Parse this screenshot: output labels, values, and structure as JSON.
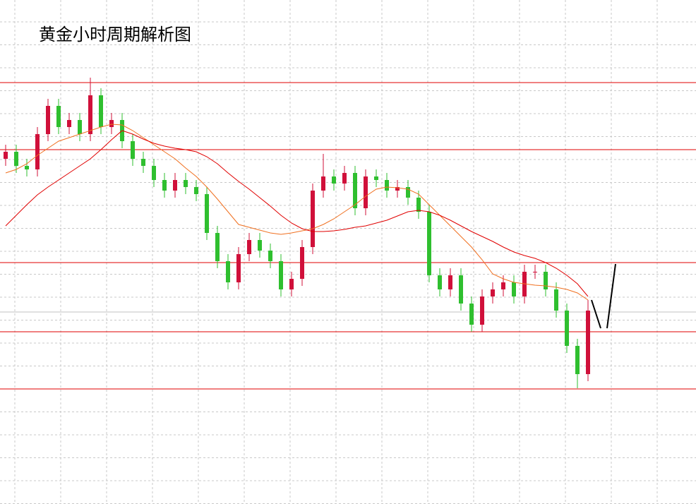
{
  "chart_data": {
    "type": "candlestick",
    "title": "黄金小时周期解析图",
    "ylim": [
      0,
      714
    ],
    "up_color": "#d0103a",
    "down_color": "#2fbf2f",
    "open": [
      489,
      499,
      479,
      474,
      524,
      564,
      534,
      544,
      524,
      579,
      534,
      544,
      514,
      489,
      479,
      459,
      444,
      459,
      449,
      439,
      384,
      344,
      314,
      354,
      374,
      359,
      344,
      304,
      319,
      364,
      444,
      464,
      454,
      469,
      419,
      464,
      459,
      444,
      449,
      434,
      414,
      324,
      304,
      324,
      284,
      254,
      294,
      304,
      314,
      294,
      329,
      329,
      304,
      274,
      224,
      184
    ],
    "high": [
      509,
      509,
      489,
      534,
      574,
      574,
      554,
      554,
      604,
      589,
      554,
      554,
      524,
      499,
      489,
      469,
      469,
      469,
      459,
      449,
      394,
      354,
      364,
      384,
      384,
      369,
      354,
      329,
      374,
      454,
      496,
      474,
      479,
      479,
      474,
      474,
      469,
      459,
      459,
      444,
      424,
      334,
      334,
      334,
      294,
      304,
      314,
      324,
      324,
      339,
      339,
      339,
      314,
      284,
      234,
      289
    ],
    "low": [
      479,
      469,
      464,
      464,
      514,
      524,
      524,
      514,
      514,
      524,
      524,
      504,
      479,
      469,
      449,
      434,
      434,
      439,
      429,
      374,
      334,
      304,
      304,
      344,
      349,
      334,
      294,
      294,
      309,
      354,
      434,
      444,
      444,
      409,
      409,
      449,
      434,
      434,
      424,
      404,
      314,
      294,
      294,
      274,
      244,
      244,
      284,
      294,
      284,
      284,
      319,
      294,
      264,
      214,
      164,
      174
    ],
    "close": [
      499,
      479,
      474,
      524,
      564,
      534,
      544,
      524,
      579,
      534,
      544,
      514,
      489,
      479,
      459,
      444,
      459,
      449,
      439,
      384,
      344,
      314,
      354,
      374,
      359,
      344,
      304,
      319,
      364,
      444,
      464,
      454,
      469,
      419,
      464,
      459,
      444,
      449,
      434,
      414,
      324,
      304,
      324,
      284,
      254,
      294,
      304,
      314,
      294,
      329,
      329,
      304,
      274,
      224,
      184,
      274
    ],
    "lines": [
      {
        "color": "#f07020",
        "values": [
          469,
          474,
          482,
          494,
          504,
          514,
          519,
          524,
          529,
          534,
          538,
          537,
          529,
          519,
          509,
          499,
          489,
          476,
          464,
          449,
          432,
          414,
          396,
          392,
          388,
          384,
          382,
          384,
          387,
          390,
          396,
          404,
          414,
          424,
          436,
          446,
          449,
          448,
          446,
          439,
          424,
          409,
          394,
          379,
          364,
          346,
          326,
          319,
          314,
          312,
          310,
          309,
          307,
          304,
          299,
          289
        ]
      },
      {
        "color": "#e00000",
        "values": [
          394,
          409,
          424,
          438,
          449,
          459,
          469,
          479,
          489,
          502,
          516,
          529,
          524,
          517,
          511,
          507,
          504,
          502,
          499,
          492,
          482,
          469,
          457,
          446,
          434,
          422,
          409,
          398,
          390,
          386,
          386,
          387,
          389,
          392,
          394,
          398,
          402,
          408,
          414,
          416,
          414,
          409,
          402,
          394,
          386,
          379,
          372,
          364,
          357,
          352,
          348,
          342,
          334,
          324,
          312,
          294
        ]
      }
    ],
    "levels": [
      597,
      502,
      342,
      244,
      163
    ],
    "level_color": "#e00000",
    "price_line": 272,
    "price_line_color": "#c0c0c0"
  }
}
